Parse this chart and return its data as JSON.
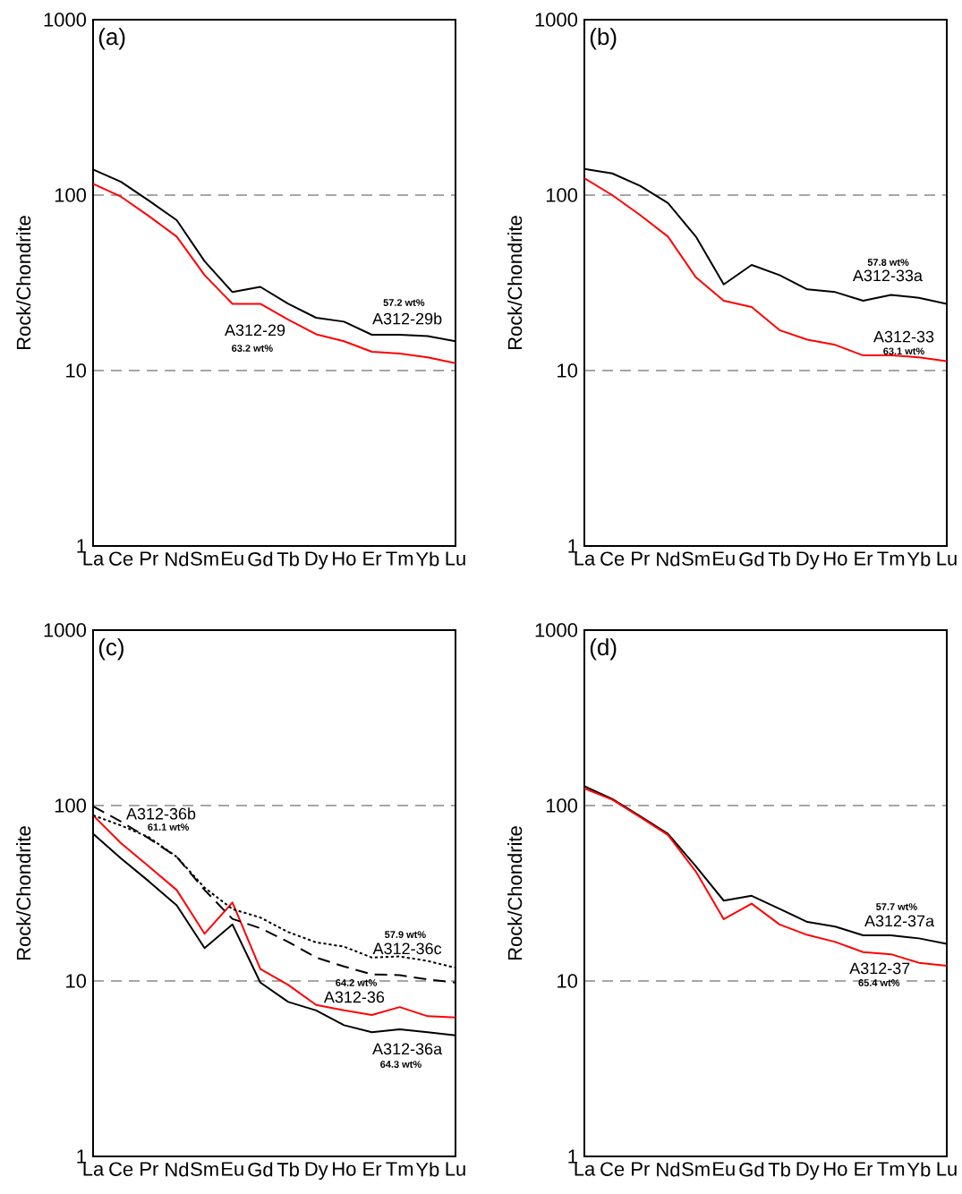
{
  "chart_data": [
    {
      "type": "line",
      "title": "(a)",
      "ylabel": "Rock/Chondrite",
      "categories": [
        "La",
        "Ce",
        "Pr",
        "Nd",
        "Sm",
        "Eu",
        "Gd",
        "Tb",
        "Dy",
        "Ho",
        "Er",
        "Tm",
        "Yb",
        "Lu"
      ],
      "log": true,
      "ylim": [
        1,
        1000
      ],
      "yticks": [
        1,
        10,
        100,
        1000
      ],
      "grid": "y",
      "series": [
        {
          "name": "A312-29b",
          "color": "#000000",
          "line_style": "solid",
          "values": [
            140,
            119,
            93,
            72,
            42,
            28,
            30,
            24,
            20,
            19,
            16,
            16,
            15.7,
            14.7
          ]
        },
        {
          "name": "A312-29",
          "color": "#ff0000",
          "line_style": "solid",
          "values": [
            116,
            98,
            76,
            58,
            35,
            24,
            24,
            19.5,
            16.1,
            14.7,
            12.8,
            12.5,
            11.9,
            11
          ]
        }
      ],
      "annotations": [
        "57.2 wt%",
        "63.2 wt%"
      ]
    },
    {
      "type": "line",
      "title": "(b)",
      "ylabel": "Rock/Chondrite",
      "categories": [
        "La",
        "Ce",
        "Pr",
        "Nd",
        "Sm",
        "Eu",
        "Gd",
        "Tb",
        "Dy",
        "Ho",
        "Er",
        "Tm",
        "Yb",
        "Lu"
      ],
      "log": true,
      "ylim": [
        1,
        1000
      ],
      "yticks": [
        1,
        10,
        100,
        1000
      ],
      "grid": "y",
      "series": [
        {
          "name": "A312-33a",
          "color": "#000000",
          "line_style": "solid",
          "values": [
            141,
            133,
            113,
            90,
            58,
            31,
            40,
            35,
            29,
            28,
            25,
            27,
            26,
            24
          ]
        },
        {
          "name": "A312-33",
          "color": "#ff0000",
          "line_style": "solid",
          "values": [
            125,
            100,
            77,
            58,
            34,
            25,
            23,
            17,
            15,
            14,
            12.2,
            12.2,
            11.9,
            11.3
          ]
        }
      ],
      "annotations": [
        "57.8 wt%",
        "63.1 wt%"
      ]
    },
    {
      "type": "line",
      "title": "(c)",
      "ylabel": "Rock/Chondrite",
      "categories": [
        "La",
        "Ce",
        "Pr",
        "Nd",
        "Sm",
        "Eu",
        "Gd",
        "Tb",
        "Dy",
        "Ho",
        "Er",
        "Tm",
        "Yb",
        "Lu"
      ],
      "log": true,
      "ylim": [
        1,
        1000
      ],
      "yticks": [
        1,
        10,
        100,
        1000
      ],
      "grid": "y",
      "series": [
        {
          "name": "A312-36a",
          "color": "#000000",
          "line_style": "solid",
          "values": [
            69,
            50,
            37,
            27,
            15.4,
            21,
            9.8,
            7.6,
            6.8,
            5.6,
            5.1,
            5.3,
            5.1,
            4.9
          ]
        },
        {
          "name": "A312-36",
          "color": "#ff0000",
          "line_style": "solid",
          "values": [
            88,
            61,
            45,
            33,
            18.6,
            28,
            11.7,
            9.5,
            7.3,
            6.8,
            6.4,
            7.1,
            6.3,
            6.2
          ]
        },
        {
          "name": "A312-36b",
          "color": "#000000",
          "line_style": "dashed",
          "values": [
            99,
            81,
            65,
            51,
            33,
            22.6,
            20,
            16.7,
            13.6,
            12.1,
            10.9,
            10.8,
            10.2,
            9.8
          ]
        },
        {
          "name": "A312-36c",
          "color": "#000000",
          "line_style": "dotted",
          "values": [
            88,
            77,
            66,
            51,
            34,
            25.7,
            23,
            19,
            16.6,
            15.7,
            13.6,
            13.8,
            13,
            11.9
          ]
        }
      ],
      "annotations": [
        "64.3 wt%",
        "64.2 wt%",
        "61.1 wt%",
        "57.9 wt%"
      ]
    },
    {
      "type": "line",
      "title": "(d)",
      "ylabel": "Rock/Chondrite",
      "categories": [
        "La",
        "Ce",
        "Pr",
        "Nd",
        "Sm",
        "Eu",
        "Gd",
        "Tb",
        "Dy",
        "Ho",
        "Er",
        "Tm",
        "Yb",
        "Lu"
      ],
      "log": true,
      "ylim": [
        1,
        1000
      ],
      "yticks": [
        1,
        10,
        100,
        1000
      ],
      "grid": "y",
      "series": [
        {
          "name": "A312-37a",
          "color": "#000000",
          "line_style": "solid",
          "values": [
            129,
            109,
            87,
            69,
            45,
            28.7,
            30.6,
            25.8,
            21.7,
            20.4,
            18.2,
            18.2,
            17.5,
            16.3
          ]
        },
        {
          "name": "A312-37",
          "color": "#ff0000",
          "line_style": "solid",
          "values": [
            125,
            108,
            86,
            68,
            42,
            22.5,
            27.6,
            21,
            18.3,
            16.7,
            14.6,
            14.2,
            12.7,
            12.2
          ]
        }
      ],
      "annotations": [
        "57.7 wt%",
        "65.4 wt%"
      ]
    }
  ]
}
